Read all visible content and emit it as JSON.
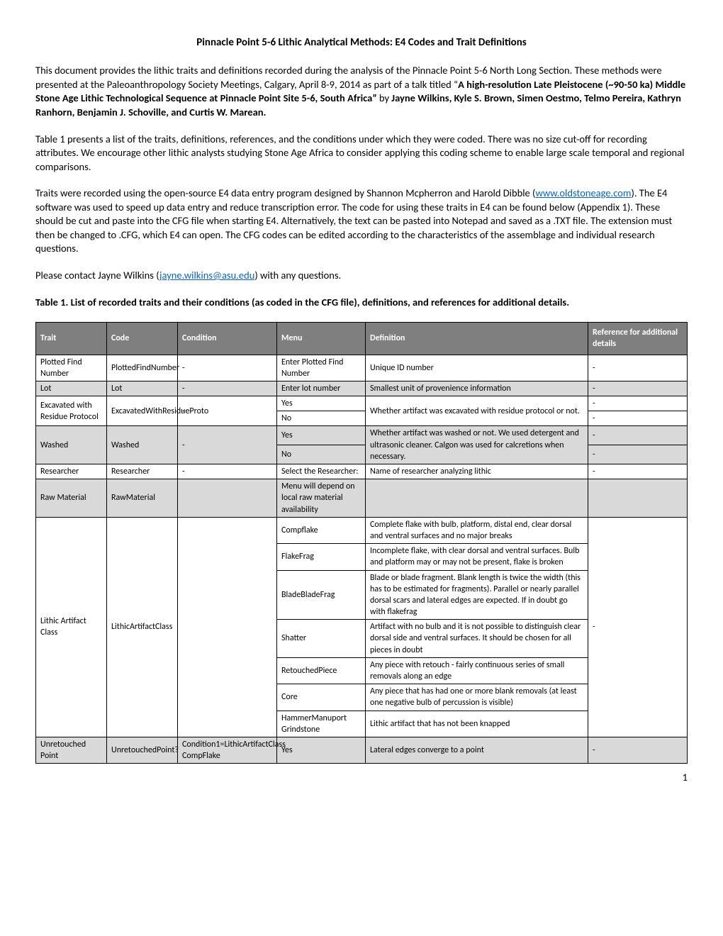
{
  "title": "Pinnacle Point 5-6 Lithic Analytical Methods: E4 Codes and Trait Definitions",
  "para1_a": "This document provides the lithic traits and definitions recorded during the analysis of the Pinnacle Point 5-6 North Long Section. These methods were presented at the Paleoanthropology Society Meetings, Calgary, April 8-9, 2014 as part of a talk titled “",
  "para1_b": "A high-resolution Late Pleistocene (~90-50 ka) Middle Stone Age Lithic Technological Sequence at Pinnacle Point Site 5-6, South Africa”",
  "para1_c": " by ",
  "para1_d": "Jayne Wilkins, Kyle S. Brown, Simen Oestmo, Telmo Pereira, Kathryn Ranhorn, Benjamin J. Schoville, and Curtis W. Marean.",
  "para2": "Table 1 presents a list of the traits, definitions, references, and the conditions under which they were coded. There was no size cut-off for recording attributes. We encourage other lithic analysts studying Stone Age Africa to consider applying this coding scheme to enable large scale temporal and regional comparisons.",
  "para3_a": "Traits were recorded using the open-source E4 data entry program designed by Shannon Mcpherron and Harold Dibble (",
  "para3_link": "www.oldstoneage.com",
  "para3_b": "). The E4 software was used to speed up data entry and reduce transcription error. The code for using these traits in E4 can be found below (Appendix 1). These should be cut and paste into the CFG file when starting E4. Alternatively, the text can be pasted into Notepad and saved as a .TXT file. The extension must then be changed to .CFG, which E4 can open. The CFG codes can be edited according to the characteristics of the assemblage and individual research questions.",
  "para4_a": "Please contact Jayne Wilkins (",
  "para4_link": "jayne.wilkins@asu.edu",
  "para4_b": ") with any questions.",
  "table_caption": "Table 1. List of recorded traits and their conditions (as coded in the CFG file), definitions, and references for additional details.",
  "headers": {
    "trait": "Trait",
    "code": "Code",
    "condition": "Condition",
    "menu": "Menu",
    "definition": "Definition",
    "reference": "Reference for additional details"
  },
  "rows": {
    "r1": {
      "trait": "Plotted Find Number",
      "code": "PlottedFindNumber",
      "cond": "-",
      "menu": "Enter Plotted Find Number",
      "def": "Unique ID number",
      "ref": "-"
    },
    "r2": {
      "trait": "Lot",
      "code": "Lot",
      "cond": "-",
      "menu": "Enter lot number",
      "def": "Smallest unit of provenience information",
      "ref": "-"
    },
    "r3": {
      "trait": "Excavated with Residue Protocol",
      "code": "ExcavatedWithResidueProto",
      "cond": "-",
      "menu1": "Yes",
      "menu2": "No",
      "def": "Whether artifact was excavated with residue protocol or not.",
      "ref1": "-",
      "ref2": "-"
    },
    "r4": {
      "trait": "Washed",
      "code": "Washed",
      "cond": "-",
      "menu1": "Yes",
      "menu2": "No",
      "def": "Whether artifact was washed or not. We used detergent and ultrasonic cleaner. Calgon was used for calcretions when necessary.",
      "ref1": "-",
      "ref2": "-"
    },
    "r5": {
      "trait": "Researcher",
      "code": "Researcher",
      "cond": "-",
      "menu": "Select the Researcher:",
      "def": "Name of researcher analyzing lithic",
      "ref": "-"
    },
    "r6": {
      "trait": "Raw Material",
      "code": "RawMaterial",
      "cond": "",
      "menu": "Menu will depend on local raw material availability",
      "def": "",
      "ref": ""
    },
    "r7": {
      "trait": "Lithic Artifact Class",
      "code": "LithicArtifactClass",
      "cond": "",
      "ref": "-",
      "m1": "Compflake",
      "d1": "Complete flake with bulb, platform, distal end, clear dorsal and ventral surfaces and no major breaks",
      "m2": "FlakeFrag",
      "d2": "Incomplete flake, with clear dorsal and ventral surfaces.  Bulb and platform may or may not be present, flake is broken",
      "m3": "BladeBladeFrag",
      "d3": "Blade or blade fragment. Blank length is twice the width (this has to be estimated for fragments). Parallel or nearly parallel dorsal scars and lateral edges are expected. If in doubt go with flakefrag",
      "m4": "Shatter",
      "d4": "Artifact with no bulb and it is not possible to distinguish clear dorsal side and ventral surfaces. It should be chosen for all pieces in doubt",
      "m5": "RetouchedPiece",
      "d5": "Any piece with retouch - fairly continuous series of small removals along an edge",
      "m6": "Core",
      "d6": "Any piece that has had one or more blank removals (at least one negative bulb of percussion is visible)",
      "m7": "HammerManuport Grindstone",
      "d7": "Lithic artifact that has not been knapped"
    },
    "r8": {
      "trait": "Unretouched Point",
      "code": "UnretouchedPoint?",
      "cond": "Condition1=LithicArtifactClass CompFlake",
      "menu": "Yes",
      "def": "Lateral edges converge to a point",
      "ref": "-"
    }
  },
  "pagenum": "1"
}
